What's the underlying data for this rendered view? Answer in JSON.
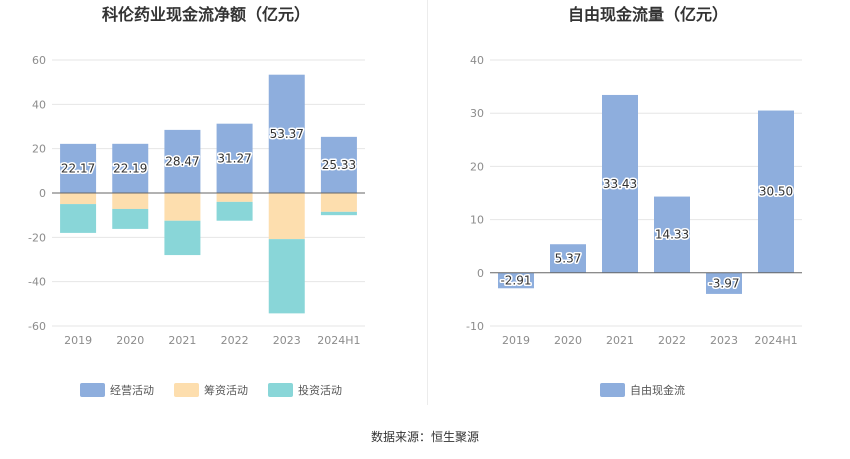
{
  "source_note": "数据来源：恒生聚源",
  "colors": {
    "operating": "#8eaedd",
    "financing": "#fddeae",
    "investing": "#89d6d8",
    "free_cash_flow": "#8eaedd",
    "grid": "#e6e6e6",
    "axis_text": "#8c8c8c",
    "title": "#333333"
  },
  "chart_data": [
    {
      "type": "bar",
      "stacked": true,
      "title": "科伦药业现金流净额（亿元）",
      "categories": [
        "2019",
        "2020",
        "2021",
        "2022",
        "2023",
        "2024H1"
      ],
      "series": [
        {
          "name": "经营活动",
          "key": "operating",
          "values": [
            22.17,
            22.19,
            28.47,
            31.27,
            53.37,
            25.33
          ],
          "labeled": true
        },
        {
          "name": "筹资活动",
          "key": "financing",
          "values": [
            -5.0,
            -7.2,
            -12.5,
            -4.0,
            -20.8,
            -8.5
          ],
          "labeled": false
        },
        {
          "name": "投资活动",
          "key": "investing",
          "values": [
            -13.0,
            -9.0,
            -15.5,
            -8.5,
            -33.5,
            -1.5
          ],
          "labeled": false
        }
      ],
      "ylim": [
        -60,
        60
      ],
      "yticks": [
        -60,
        -40,
        -20,
        0,
        20,
        40,
        60
      ],
      "grid": true,
      "legend": "bottom"
    },
    {
      "type": "bar",
      "title": "自由现金流量（亿元）",
      "categories": [
        "2019",
        "2020",
        "2021",
        "2022",
        "2023",
        "2024H1"
      ],
      "series": [
        {
          "name": "自由现金流",
          "key": "free_cash_flow",
          "values": [
            -2.91,
            5.37,
            33.43,
            14.33,
            -3.97,
            30.5
          ],
          "labeled": true
        }
      ],
      "ylim": [
        -10,
        40
      ],
      "yticks": [
        -10,
        0,
        10,
        20,
        30,
        40
      ],
      "grid": true,
      "legend": "bottom"
    }
  ]
}
